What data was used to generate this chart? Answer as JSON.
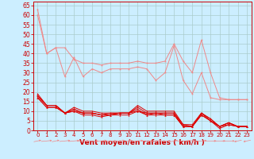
{
  "background_color": "#cceeff",
  "grid_color": "#aacccc",
  "xlabel": "Vent moyen/en rafales ( km/h )",
  "xlabel_color": "#cc0000",
  "tick_color": "#cc0000",
  "xlabel_fontsize": 6.5,
  "ytick_fontsize": 5.5,
  "xtick_fontsize": 5.0,
  "ylim": [
    0,
    67
  ],
  "xlim": [
    -0.5,
    23.5
  ],
  "yticks": [
    0,
    5,
    10,
    15,
    20,
    25,
    30,
    35,
    40,
    45,
    50,
    55,
    60,
    65
  ],
  "xticks": [
    0,
    1,
    2,
    3,
    4,
    5,
    6,
    7,
    8,
    9,
    10,
    11,
    12,
    13,
    14,
    15,
    16,
    17,
    18,
    19,
    20,
    21,
    22,
    23
  ],
  "light_lines": [
    [
      63,
      40,
      43,
      43,
      37,
      35,
      35,
      34,
      35,
      35,
      35,
      36,
      35,
      35,
      36,
      45,
      36,
      30,
      47,
      30,
      17,
      16,
      16,
      16
    ],
    [
      60,
      40,
      43,
      28,
      38,
      28,
      32,
      30,
      32,
      32,
      32,
      33,
      32,
      26,
      30,
      44,
      26,
      19,
      30,
      17,
      16,
      16,
      16,
      16
    ]
  ],
  "dark_lines": [
    [
      19,
      13,
      13,
      9,
      12,
      10,
      10,
      9,
      9,
      9,
      9,
      13,
      10,
      10,
      10,
      10,
      3,
      3,
      9,
      6,
      2,
      4,
      2,
      2
    ],
    [
      18,
      13,
      13,
      9,
      11,
      9,
      9,
      8,
      9,
      9,
      9,
      12,
      9,
      9,
      9,
      9,
      2,
      2,
      9,
      6,
      2,
      4,
      2,
      2
    ],
    [
      18,
      13,
      13,
      9,
      11,
      9,
      9,
      8,
      8,
      9,
      9,
      11,
      8,
      9,
      8,
      8,
      2,
      2,
      8,
      5,
      2,
      3,
      2,
      2
    ],
    [
      17,
      12,
      12,
      9,
      10,
      8,
      8,
      7,
      8,
      8,
      8,
      10,
      8,
      8,
      8,
      8,
      2,
      2,
      8,
      5,
      1,
      3,
      2,
      2
    ],
    [
      17,
      12,
      12,
      9,
      10,
      9,
      9,
      8,
      8,
      9,
      9,
      10,
      9,
      9,
      9,
      9,
      3,
      2,
      9,
      5,
      2,
      4,
      2,
      2
    ]
  ],
  "light_color": "#f08888",
  "dark_color": "#dd0000",
  "wind_directions": [
    225,
    247,
    225,
    247,
    247,
    270,
    270,
    247,
    270,
    247,
    225,
    247,
    270,
    247,
    270,
    225,
    270,
    315,
    247,
    270,
    270,
    270,
    45,
    45
  ]
}
